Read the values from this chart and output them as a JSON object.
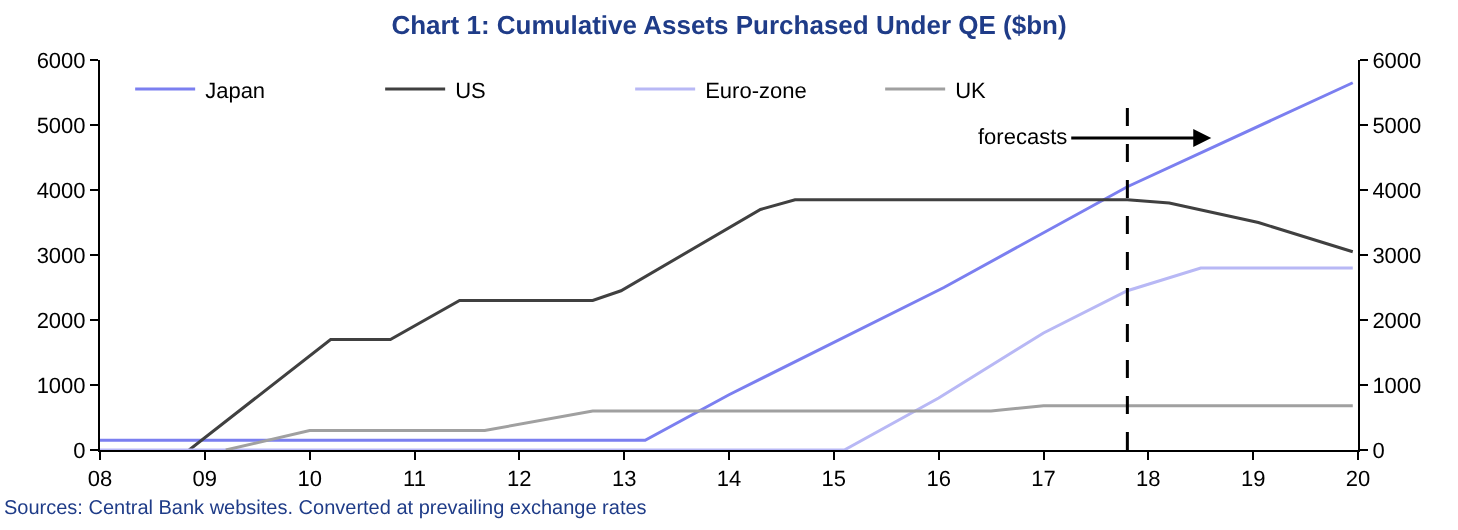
{
  "chart_data": {
    "type": "line",
    "title": "Chart 1: Cumulative Assets Purchased Under QE ($bn)",
    "xlim": [
      2008,
      2020
    ],
    "xticks": [
      {
        "value": 2008,
        "label": "08"
      },
      {
        "value": 2009,
        "label": "09"
      },
      {
        "value": 2010,
        "label": "10"
      },
      {
        "value": 2011,
        "label": "11"
      },
      {
        "value": 2012,
        "label": "12"
      },
      {
        "value": 2013,
        "label": "13"
      },
      {
        "value": 2014,
        "label": "14"
      },
      {
        "value": 2015,
        "label": "15"
      },
      {
        "value": 2016,
        "label": "16"
      },
      {
        "value": 2017,
        "label": "17"
      },
      {
        "value": 2018,
        "label": "18"
      },
      {
        "value": 2019,
        "label": "19"
      },
      {
        "value": 2020,
        "label": "20"
      }
    ],
    "ylim": [
      0,
      6000
    ],
    "yticks": [
      0,
      1000,
      2000,
      3000,
      4000,
      5000,
      6000
    ],
    "y2lim": [
      0,
      6000
    ],
    "y2ticks": [
      0,
      1000,
      2000,
      3000,
      4000,
      5000,
      6000
    ],
    "legend": "top left",
    "marker": "none",
    "line_style": "solid",
    "series": [
      {
        "name": "Japan",
        "color": "#7b7ff0",
        "x": [
          2008,
          2013.2,
          2014.0,
          2016.05,
          2017.8,
          2019.95
        ],
        "values": [
          150,
          150,
          850,
          2500,
          4050,
          5650
        ]
      },
      {
        "name": "US",
        "color": "#404040",
        "x": [
          2008.85,
          2010.2,
          2010.77,
          2011.43,
          2012.7,
          2012.97,
          2014.3,
          2014.63,
          2017.8,
          2018.2,
          2019.05,
          2019.95
        ],
        "values": [
          0,
          1700,
          1700,
          2300,
          2300,
          2450,
          3700,
          3850,
          3850,
          3800,
          3500,
          3050
        ]
      },
      {
        "name": "Euro-zone",
        "color": "#b8b8f5",
        "x": [
          2008,
          2015.1,
          2016.0,
          2017.0,
          2017.8,
          2018.5,
          2019.95
        ],
        "values": [
          0,
          0,
          800,
          1800,
          2450,
          2800,
          2800
        ]
      },
      {
        "name": "UK",
        "color": "#a0a0a0",
        "x": [
          2009.2,
          2010.0,
          2011.67,
          2012.7,
          2016.5,
          2017.0,
          2019.95
        ],
        "values": [
          0,
          300,
          300,
          600,
          600,
          680,
          680
        ]
      }
    ],
    "ref_lines": [
      {
        "axis": "x",
        "value": 2017.8,
        "label": "forecasts",
        "color": "#000000",
        "line_style": "dashed"
      }
    ],
    "annotations": [
      "Sources: Central Bank websites. Converted at prevailing exchange rates"
    ]
  }
}
